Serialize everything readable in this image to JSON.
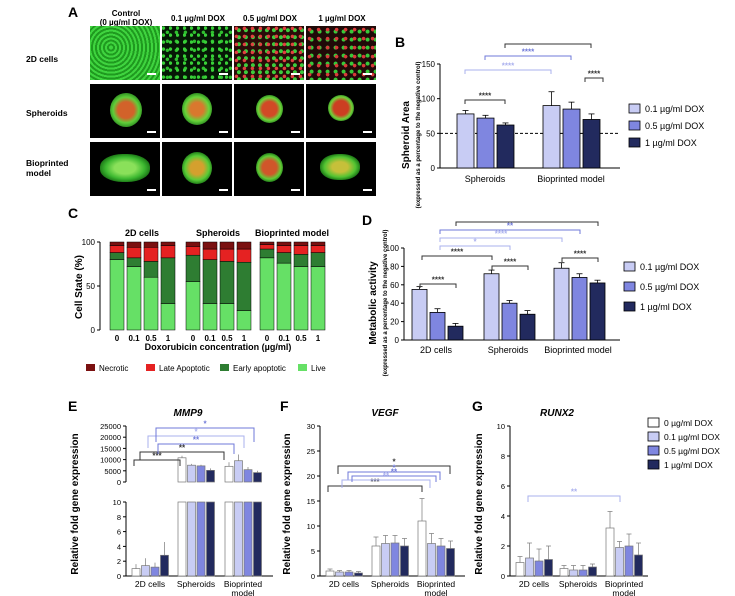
{
  "panels": {
    "A": "A",
    "B": "B",
    "C": "C",
    "D": "D",
    "E": "E",
    "F": "F",
    "G": "G"
  },
  "panelA": {
    "columns": [
      {
        "line1": "Control",
        "line2": "(0 µg/ml DOX)"
      },
      {
        "line1": "0.1 µg/ml DOX",
        "line2": ""
      },
      {
        "line1": "0.5 µg/ml DOX",
        "line2": ""
      },
      {
        "line1": "1 µg/ml DOX",
        "line2": ""
      }
    ],
    "rows": [
      {
        "line1": "2D cells",
        "line2": ""
      },
      {
        "line1": "Spheroids",
        "line2": ""
      },
      {
        "line1": "Bioprinted",
        "line2": "model"
      }
    ]
  },
  "colors": {
    "dose01": "#c8ccf4",
    "dose05": "#7f86e0",
    "dose1": "#222a5e",
    "dose0": "#ffffff",
    "necrotic": "#7a1010",
    "late": "#e52222",
    "early": "#2e7d32",
    "live": "#66e066",
    "sigLight": "#aab0ee",
    "sigMid": "#6f79d8",
    "sigDark": "#333333"
  },
  "chart_data": [
    {
      "id": "B",
      "type": "bar",
      "ylabel": "Spheroid Area",
      "ylabel2": "(expressed as a percentage to the negative control)",
      "ylim": [
        0,
        150
      ],
      "yticks": [
        "0",
        "50",
        "100",
        "150"
      ],
      "reference_line": 50,
      "categories": [
        "Spheroids",
        "Bioprinted model"
      ],
      "series": [
        {
          "name": "0.1 µg/ml DOX",
          "values": [
            78,
            90
          ],
          "errors": [
            5,
            20
          ]
        },
        {
          "name": "0.5 µg/ml DOX",
          "values": [
            72,
            85
          ],
          "errors": [
            4,
            10
          ]
        },
        {
          "name": "1 µg/ml DOX",
          "values": [
            62,
            70
          ],
          "errors": [
            3,
            8
          ]
        }
      ],
      "significance": [
        "****",
        "****",
        "****",
        "****",
        "****"
      ]
    },
    {
      "id": "C",
      "type": "bar",
      "ylabel": "Cell State (%)",
      "xlabel": "Doxorubicin concentration (µg/ml)",
      "ylim": [
        0,
        100
      ],
      "yticks": [
        "0",
        "50",
        "100"
      ],
      "groups": [
        "2D cells",
        "Spheroids",
        "Bioprinted model"
      ],
      "categories": [
        "0",
        "0.1",
        "0.5",
        "1"
      ],
      "stack_order": [
        "Live",
        "Early apoptotic",
        "Late Apoptotic",
        "Necrotic"
      ],
      "stacks": [
        [
          [
            80,
            8,
            8,
            4
          ],
          [
            72,
            10,
            12,
            6
          ],
          [
            60,
            18,
            16,
            6
          ],
          [
            30,
            52,
            14,
            4
          ]
        ],
        [
          [
            55,
            30,
            10,
            5
          ],
          [
            30,
            50,
            12,
            8
          ],
          [
            30,
            48,
            14,
            8
          ],
          [
            22,
            55,
            15,
            8
          ]
        ],
        [
          [
            82,
            10,
            5,
            3
          ],
          [
            76,
            12,
            8,
            4
          ],
          [
            72,
            14,
            10,
            4
          ],
          [
            72,
            16,
            8,
            4
          ]
        ]
      ],
      "legend": [
        "Necrotic",
        "Late Apoptotic",
        "Early apoptotic",
        "Live"
      ]
    },
    {
      "id": "D",
      "type": "bar",
      "ylabel": "Metabolic activity",
      "ylabel2": "(expressed as a percentage to the negative control)",
      "ylim": [
        0,
        100
      ],
      "yticks": [
        "0",
        "20",
        "40",
        "60",
        "80",
        "100"
      ],
      "categories": [
        "2D cells",
        "Spheroids",
        "Bioprinted model"
      ],
      "series": [
        {
          "name": "0.1 µg/ml DOX",
          "values": [
            55,
            72,
            78
          ],
          "errors": [
            3,
            4,
            6
          ]
        },
        {
          "name": "0.5 µg/ml DOX",
          "values": [
            30,
            40,
            68
          ],
          "errors": [
            4,
            3,
            4
          ]
        },
        {
          "name": "1 µg/ml DOX",
          "values": [
            15,
            28,
            62
          ],
          "errors": [
            3,
            4,
            3
          ]
        }
      ],
      "significance": [
        "****",
        "****",
        "****",
        "****",
        "*",
        "****",
        "**",
        "****"
      ]
    },
    {
      "id": "E",
      "type": "bar",
      "title": "MMP9",
      "ylabel": "Relative fold gene expression",
      "yticks_top": [
        "0",
        "5000",
        "10000",
        "15000",
        "20000",
        "25000"
      ],
      "yticks_bottom": [
        "0",
        "2",
        "4",
        "6",
        "8",
        "10"
      ],
      "categories": [
        "2D cells",
        "Spheroids",
        "Bioprinted model"
      ],
      "series": [
        {
          "name": "0 µg/ml DOX",
          "values": [
            1,
            10800,
            7000
          ],
          "errors": [
            0.6,
            900,
            1800
          ]
        },
        {
          "name": "0.1 µg/ml DOX",
          "values": [
            1.4,
            7500,
            9500
          ],
          "errors": [
            1,
            600,
            2800
          ]
        },
        {
          "name": "0.5 µg/ml DOX",
          "values": [
            1.2,
            7200,
            5500
          ],
          "errors": [
            0.6,
            500,
            1200
          ]
        },
        {
          "name": "1 µg/ml DOX",
          "values": [
            2.8,
            5200,
            4200
          ],
          "errors": [
            1.8,
            900,
            800
          ]
        }
      ],
      "significance": [
        "***",
        "**",
        "**",
        "*",
        "*"
      ]
    },
    {
      "id": "F",
      "type": "bar",
      "title": "VEGF",
      "ylabel": "Relative fold gene expression",
      "ylim": [
        0,
        30
      ],
      "yticks": [
        "0",
        "5",
        "10",
        "15",
        "20",
        "25",
        "30"
      ],
      "categories": [
        "2D cells",
        "Spheroids",
        "Bioprinted model"
      ],
      "series": [
        {
          "name": "0 µg/ml DOX",
          "values": [
            1,
            6,
            11
          ],
          "errors": [
            0.4,
            1.8,
            4.5
          ]
        },
        {
          "name": "0.1 µg/ml DOX",
          "values": [
            0.8,
            6.5,
            6.5
          ],
          "errors": [
            0.3,
            1.6,
            2
          ]
        },
        {
          "name": "0.5 µg/ml DOX",
          "values": [
            0.8,
            6.6,
            6
          ],
          "errors": [
            0.3,
            1.5,
            1.5
          ]
        },
        {
          "name": "1 µg/ml DOX",
          "values": [
            0.6,
            6,
            5.5
          ],
          "errors": [
            0.3,
            1.5,
            1.5
          ]
        }
      ],
      "significance": [
        "***",
        "*",
        "*",
        "**",
        "**"
      ]
    },
    {
      "id": "G",
      "type": "bar",
      "title": "RUNX2",
      "ylabel": "Relative fold gene expression",
      "ylim": [
        0,
        10
      ],
      "yticks": [
        "0",
        "2",
        "4",
        "6",
        "8",
        "10"
      ],
      "categories": [
        "2D cells",
        "Spheroids",
        "Bioprinted model"
      ],
      "series": [
        {
          "name": "0 µg/ml DOX",
          "values": [
            0.9,
            0.5,
            3.2
          ],
          "errors": [
            0.4,
            0.2,
            1.1
          ]
        },
        {
          "name": "0.1 µg/ml DOX",
          "values": [
            1.2,
            0.4,
            1.9
          ],
          "errors": [
            1,
            0.3,
            0.4
          ]
        },
        {
          "name": "0.5 µg/ml DOX",
          "values": [
            1,
            0.4,
            2
          ],
          "errors": [
            0.8,
            0.3,
            0.8
          ]
        },
        {
          "name": "1 µg/ml DOX",
          "values": [
            1.1,
            0.6,
            1.4
          ],
          "errors": [
            0.9,
            0.2,
            0.8
          ]
        }
      ],
      "significance": [
        "**"
      ]
    }
  ]
}
